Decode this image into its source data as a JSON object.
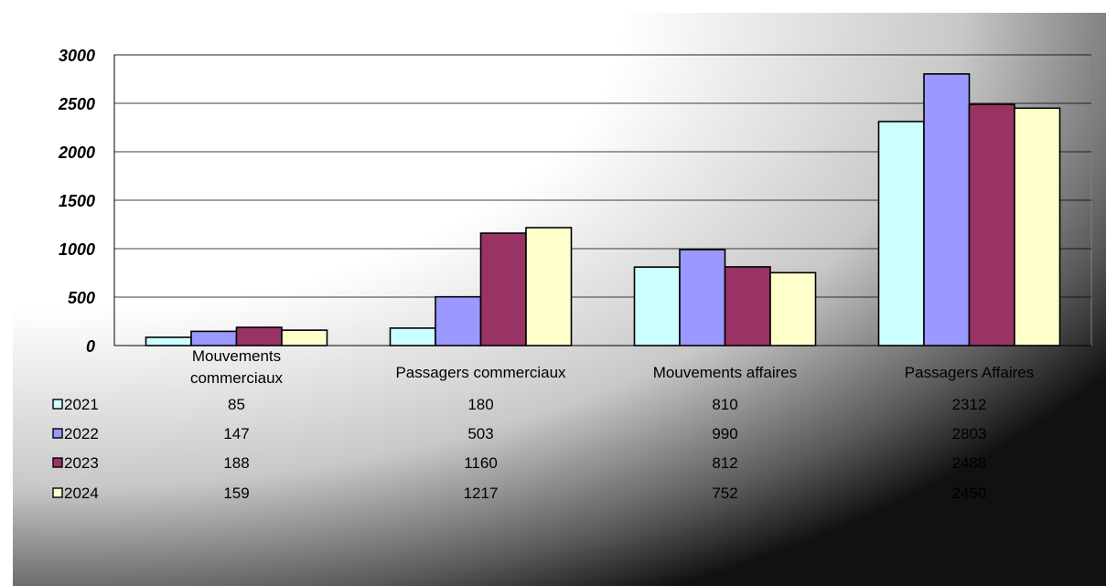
{
  "chart_data": {
    "type": "bar",
    "categories": [
      [
        "Mouvements",
        "commerciaux"
      ],
      [
        "Passagers commerciaux"
      ],
      [
        "Mouvements affaires"
      ],
      [
        "Passagers Affaires"
      ]
    ],
    "series": [
      {
        "name": "2021",
        "values": [
          85,
          180,
          810,
          2312
        ],
        "color": "#ccffff"
      },
      {
        "name": "2022",
        "values": [
          147,
          503,
          990,
          2803
        ],
        "color": "#9999ff"
      },
      {
        "name": "2023",
        "values": [
          188,
          1160,
          812,
          2488
        ],
        "color": "#993366"
      },
      {
        "name": "2024",
        "values": [
          159,
          1217,
          752,
          2450
        ],
        "color": "#ffffcc"
      }
    ],
    "ylim": [
      0,
      3000
    ],
    "yticks": [
      "0",
      "500",
      "1000",
      "1500",
      "2000",
      "2500",
      "3000"
    ],
    "grid": true,
    "legend": "data table below chart",
    "table_values": [
      [
        "85",
        "180",
        "810",
        "2312"
      ],
      [
        "147",
        "503",
        "990",
        "2803"
      ],
      [
        "188",
        "1160",
        "812",
        "2488"
      ],
      [
        "159",
        "1217",
        "752",
        "2450"
      ]
    ]
  }
}
